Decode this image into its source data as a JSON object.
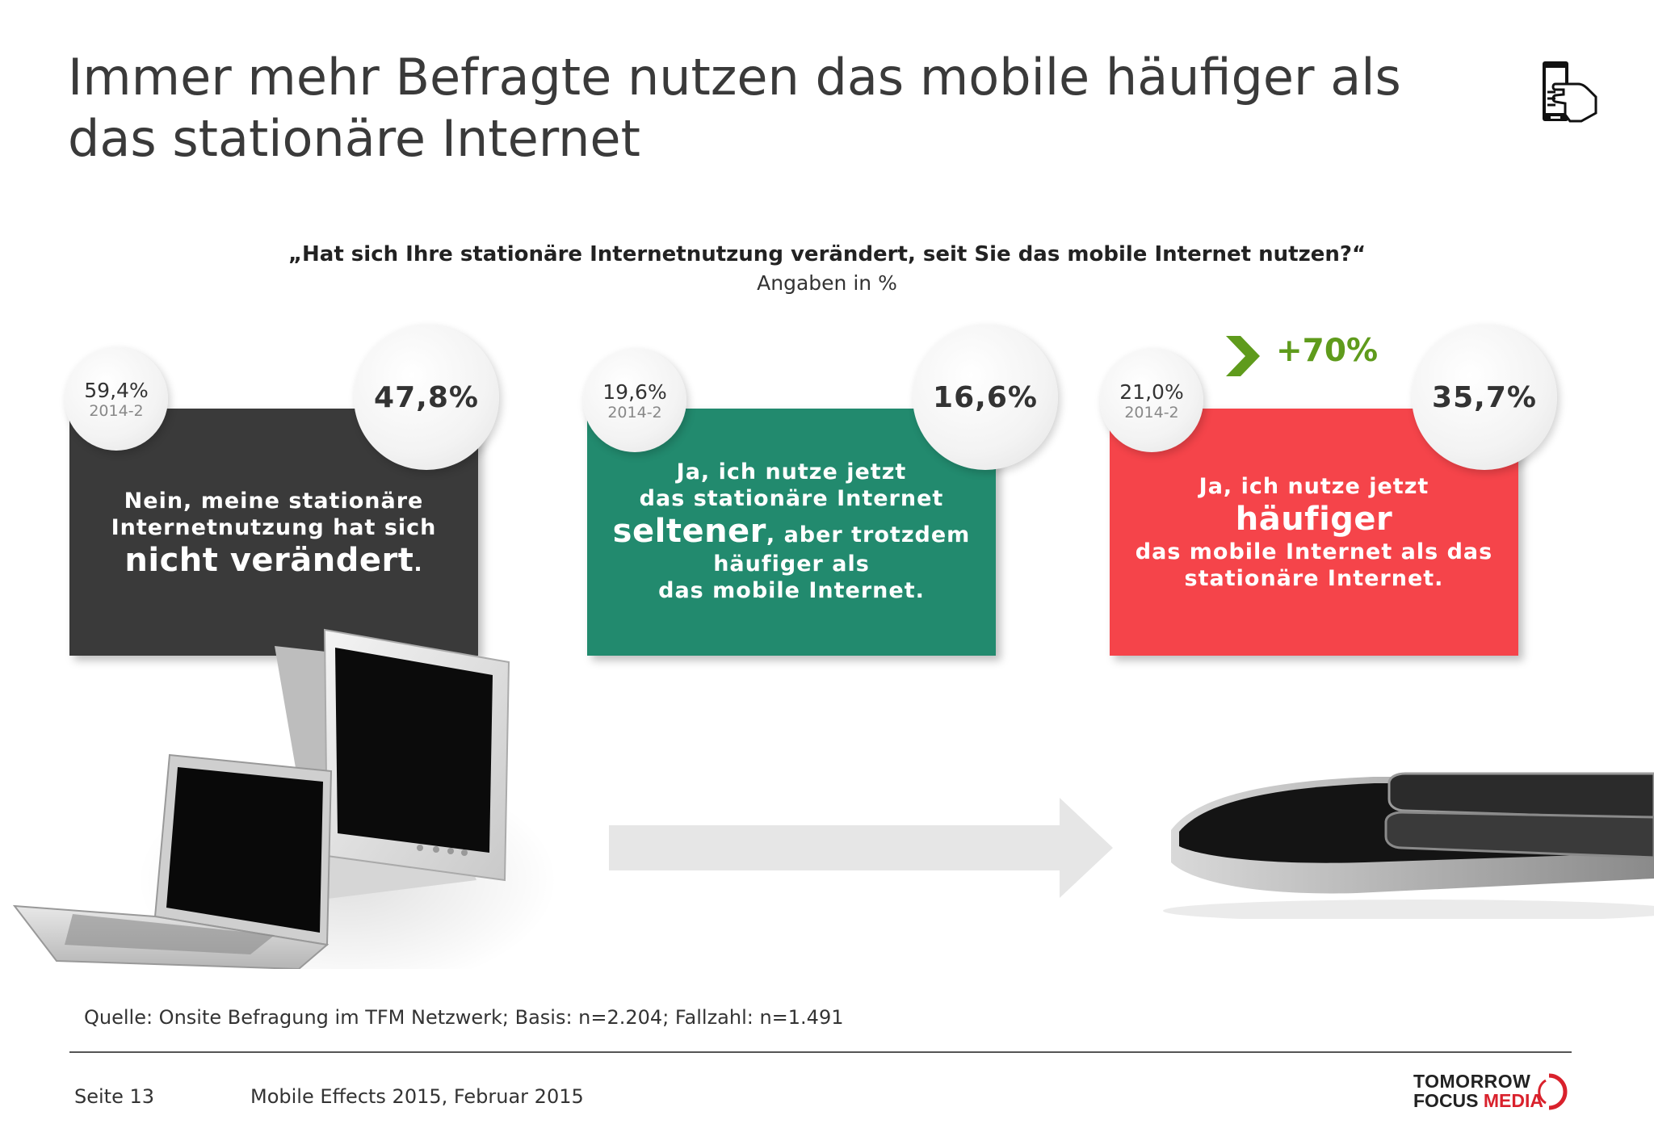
{
  "title": "Immer mehr Befragte nutzen das mobile häufiger als das stationäre Internet",
  "question": "„Hat sich Ihre stationäre Internetnutzung verändert, seit Sie das mobile Internet nutzen?“",
  "unit_label": "Angaben in %",
  "cards": [
    {
      "color": "#3a3a3a",
      "current_value": "47,8%",
      "previous_value": "59,4%",
      "previous_period": "2014-2",
      "text_line1": "Nein, meine stationäre",
      "text_line2": "Internetnutzung hat sich",
      "text_emphasis": "nicht verändert",
      "text_suffix": "."
    },
    {
      "color": "#228a6e",
      "current_value": "16,6%",
      "previous_value": "19,6%",
      "previous_period": "2014-2",
      "text_line1": "Ja, ich nutze jetzt",
      "text_line2": "das stationäre Internet",
      "text_emphasis": "seltener",
      "text_after_emphasis": ", aber trotzdem",
      "text_line4": "häufiger als",
      "text_line5": "das mobile Internet."
    },
    {
      "color": "#f5444a",
      "current_value": "35,7%",
      "previous_value": "21,0%",
      "previous_period": "2014-2",
      "text_line1": "Ja, ich nutze jetzt",
      "text_emphasis": "häufiger",
      "text_line3": "das mobile Internet als das",
      "text_line4": "stationäre Internet."
    }
  ],
  "growth": {
    "label": "+70%",
    "color": "#5f9b1c"
  },
  "source": "Quelle: Onsite Befragung im TFM Netzwerk; Basis: n=2.204; Fallzahl: n=1.491",
  "footer": {
    "page": "Seite 13",
    "document": "Mobile Effects 2015, Februar 2015",
    "logo_line1": "TOMORROW",
    "logo_line2a": "FOCUS ",
    "logo_line2b": "MEDIA"
  }
}
